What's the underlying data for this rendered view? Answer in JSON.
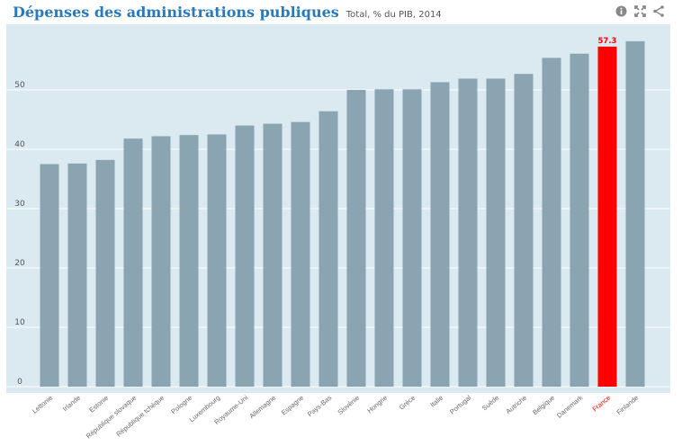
{
  "header": {
    "title": "Dépenses des administrations publiques",
    "subtitle": "Total, % du PIB, 2014"
  },
  "icons": [
    "info-icon",
    "fullscreen-icon",
    "share-icon"
  ],
  "colors": {
    "bar": "#8aa4b1",
    "highlight": "#ff0000",
    "background": "#dbe9f1",
    "grid": "#ffffff",
    "title": "#2a7ab9"
  },
  "chart_data": {
    "type": "bar",
    "title": "Dépenses des administrations publiques",
    "subtitle": "Total, % du PIB, 2014",
    "xlabel": "",
    "ylabel": "",
    "ylim": [
      0,
      60
    ],
    "yticks": [
      0,
      10,
      20,
      30,
      40,
      50
    ],
    "grid": true,
    "categories": [
      "Lettonie",
      "Irlande",
      "Estonie",
      "République slovaque",
      "République tchèque",
      "Pologne",
      "Luxembourg",
      "Royaume-Uni",
      "Allemagne",
      "Espagne",
      "Pays-Bas",
      "Slovénie",
      "Hongrie",
      "Grèce",
      "Italie",
      "Portugal",
      "Suède",
      "Autriche",
      "Belgique",
      "Danemark",
      "France",
      "Finlande"
    ],
    "values": [
      37.5,
      37.6,
      38.2,
      41.8,
      42.2,
      42.4,
      42.5,
      44.0,
      44.3,
      44.6,
      46.4,
      50.0,
      50.1,
      50.1,
      51.3,
      51.9,
      51.9,
      52.7,
      55.4,
      56.1,
      57.3,
      58.2
    ],
    "highlight": "France",
    "data_labels": {
      "France": "57.3"
    }
  }
}
